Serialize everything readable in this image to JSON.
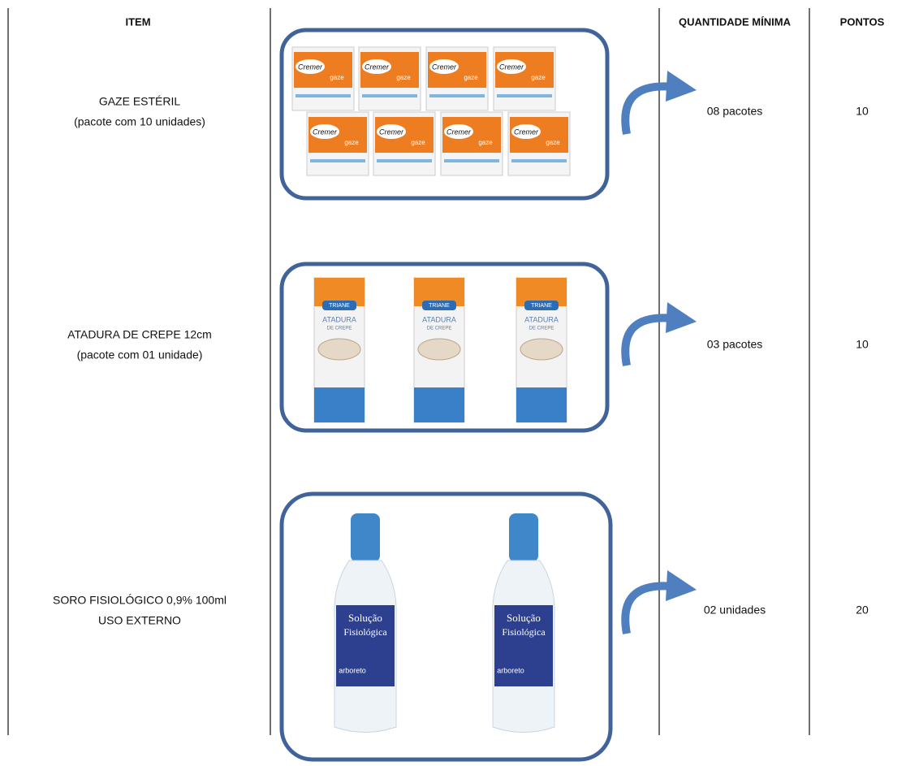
{
  "header": {
    "item": "ITEM",
    "quantity": "QUANTIDADE MÍNIMA",
    "points": "PONTOS"
  },
  "rows": [
    {
      "item": [
        "GAZE ESTÉRIL",
        "(pacote com 10 unidades)"
      ],
      "quantity": "08 pacotes",
      "points": "10",
      "product": {
        "brand": "Cremer",
        "label": "gaze"
      }
    },
    {
      "item": [
        "ATADURA DE CREPE 12cm",
        "(pacote com 01 unidade)"
      ],
      "quantity": "03 pacotes",
      "points": "10",
      "product": {
        "brand": "TRIANE",
        "label": "ATADURA",
        "sublabel": "DE CREPE"
      }
    },
    {
      "item": [
        "SORO FISIOLÓGICO 0,9% 100ml",
        "USO EXTERNO"
      ],
      "quantity": "02 unidades",
      "points": "20",
      "product": {
        "label": "Solução",
        "sublabel": "Fisiológica",
        "brand": "arboreto"
      }
    }
  ]
}
